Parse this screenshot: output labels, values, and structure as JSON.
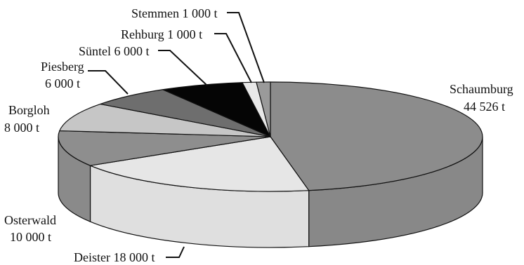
{
  "chart_data": {
    "type": "pie",
    "style": "3d",
    "unit": "t",
    "slices": [
      {
        "name": "Schaumburg",
        "value": 44526,
        "label_lines": [
          "Schaumburg",
          "44 526 t"
        ],
        "color": "#8c8c8c"
      },
      {
        "name": "Deister",
        "value": 18000,
        "label_lines": [
          "Deister 18 000 t"
        ],
        "color": "#e6e6e6"
      },
      {
        "name": "Osterwald",
        "value": 10000,
        "label_lines": [
          "Osterwald",
          "10 000 t"
        ],
        "color": "#8e8e8e"
      },
      {
        "name": "Borgloh",
        "value": 8000,
        "label_lines": [
          "Borgloh",
          "8 000 t"
        ],
        "color": "#c6c6c6"
      },
      {
        "name": "Piesberg",
        "value": 6000,
        "label_lines": [
          "Piesberg",
          "6 000 t"
        ],
        "color": "#6e6e6e"
      },
      {
        "name": "Süntel",
        "value": 6000,
        "label_lines": [
          "Süntel 6 000 t"
        ],
        "color": "#050505"
      },
      {
        "name": "Rehburg",
        "value": 1000,
        "label_lines": [
          "Rehburg 1 000 t"
        ],
        "color": "#e8e8e8"
      },
      {
        "name": "Stemmen",
        "value": 1000,
        "label_lines": [
          "Stemmen 1 000 t"
        ],
        "color": "#9a9a9a"
      }
    ]
  }
}
